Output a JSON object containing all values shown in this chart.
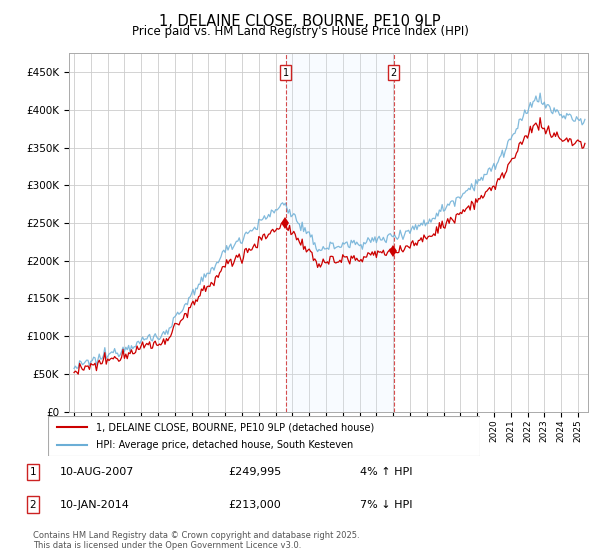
{
  "title": "1, DELAINE CLOSE, BOURNE, PE10 9LP",
  "subtitle": "Price paid vs. HM Land Registry's House Price Index (HPI)",
  "ylim": [
    0,
    475000
  ],
  "yticks": [
    0,
    50000,
    100000,
    150000,
    200000,
    250000,
    300000,
    350000,
    400000,
    450000
  ],
  "ytick_labels": [
    "£0",
    "£50K",
    "£100K",
    "£150K",
    "£200K",
    "£250K",
    "£300K",
    "£350K",
    "£400K",
    "£450K"
  ],
  "hpi_color": "#6baed6",
  "price_color": "#cc0000",
  "sale1_year": 2007.6,
  "sale1_price": 249995,
  "sale2_year": 2014.04,
  "sale2_price": 213000,
  "legend_line1": "1, DELAINE CLOSE, BOURNE, PE10 9LP (detached house)",
  "legend_line2": "HPI: Average price, detached house, South Kesteven",
  "footer": "Contains HM Land Registry data © Crown copyright and database right 2025.\nThis data is licensed under the Open Government Licence v3.0.",
  "background_color": "#ffffff",
  "grid_color": "#cccccc",
  "shade_color": "#ddeeff",
  "xstart": 1995,
  "xend": 2025
}
